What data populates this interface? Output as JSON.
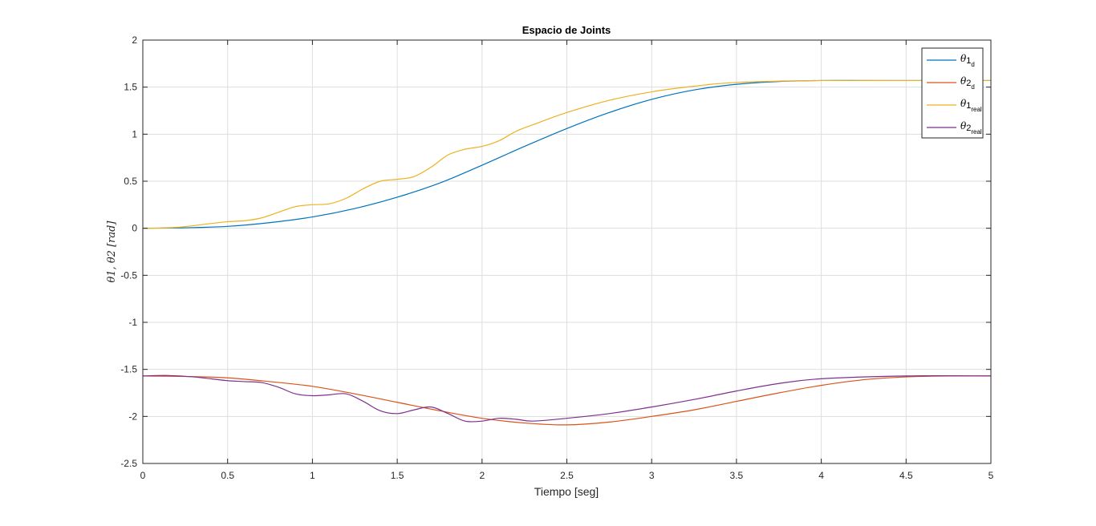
{
  "chart_data": {
    "type": "line",
    "title": "Espacio de Joints",
    "xlabel": "Tiempo [seg]",
    "ylabel": "θ1, θ2 [rad]",
    "xlim": [
      0,
      5
    ],
    "ylim": [
      -2.5,
      2
    ],
    "xticks": [
      0,
      0.5,
      1,
      1.5,
      2,
      2.5,
      3,
      3.5,
      4,
      4.5,
      5
    ],
    "xtick_labels": [
      "0",
      "0.5",
      "1",
      "1.5",
      "2",
      "2.5",
      "3",
      "3.5",
      "4",
      "4.5",
      "5"
    ],
    "yticks": [
      -2.5,
      -2,
      -1.5,
      -1,
      -0.5,
      0,
      0.5,
      1,
      1.5,
      2
    ],
    "ytick_labels": [
      "-2.5",
      "-2",
      "-1.5",
      "-1",
      "-0.5",
      "0",
      "0.5",
      "1",
      "1.5",
      "2"
    ],
    "grid": true,
    "legend_position": "top-right",
    "series": [
      {
        "name": "θ1d",
        "label_main": "θ",
        "label_index": "1",
        "label_sub": "d",
        "color": "#0072BD",
        "x": [
          0,
          0.25,
          0.5,
          0.75,
          1,
          1.25,
          1.5,
          1.75,
          2,
          2.25,
          2.5,
          2.75,
          3,
          3.25,
          3.5,
          3.75,
          4,
          4.25,
          4.5,
          4.75,
          5
        ],
        "y": [
          0,
          0.005,
          0.02,
          0.06,
          0.12,
          0.21,
          0.33,
          0.48,
          0.67,
          0.87,
          1.06,
          1.23,
          1.37,
          1.47,
          1.53,
          1.56,
          1.57,
          1.57,
          1.57,
          1.57,
          1.57
        ]
      },
      {
        "name": "θ2d",
        "label_main": "θ",
        "label_index": "2",
        "label_sub": "d",
        "color": "#D95319",
        "x": [
          0,
          0.25,
          0.5,
          0.75,
          1,
          1.25,
          1.5,
          1.75,
          2,
          2.25,
          2.5,
          2.75,
          3,
          3.25,
          3.5,
          3.75,
          4,
          4.25,
          4.5,
          4.75,
          5
        ],
        "y": [
          -1.57,
          -1.575,
          -1.59,
          -1.63,
          -1.68,
          -1.76,
          -1.85,
          -1.94,
          -2.02,
          -2.07,
          -2.09,
          -2.06,
          -2.0,
          -1.93,
          -1.84,
          -1.75,
          -1.67,
          -1.61,
          -1.58,
          -1.57,
          -1.57
        ]
      },
      {
        "name": "θ1real",
        "label_main": "θ",
        "label_index": "1",
        "label_sub": "real",
        "color": "#EDB120",
        "x": [
          0,
          0.2,
          0.4,
          0.5,
          0.6,
          0.7,
          0.8,
          0.9,
          1.0,
          1.1,
          1.2,
          1.3,
          1.4,
          1.5,
          1.6,
          1.7,
          1.8,
          1.9,
          2.0,
          2.1,
          2.2,
          2.3,
          2.5,
          2.75,
          3.0,
          3.25,
          3.5,
          4.0,
          4.5,
          5.0
        ],
        "y": [
          0,
          0.01,
          0.05,
          0.07,
          0.08,
          0.11,
          0.17,
          0.23,
          0.25,
          0.26,
          0.32,
          0.42,
          0.5,
          0.52,
          0.55,
          0.65,
          0.78,
          0.84,
          0.87,
          0.93,
          1.03,
          1.1,
          1.23,
          1.36,
          1.45,
          1.51,
          1.55,
          1.57,
          1.57,
          1.57
        ]
      },
      {
        "name": "θ2real",
        "label_main": "θ",
        "label_index": "2",
        "label_sub": "real",
        "color": "#7E2F8E",
        "x": [
          0,
          0.15,
          0.3,
          0.4,
          0.5,
          0.6,
          0.7,
          0.8,
          0.9,
          1.0,
          1.1,
          1.2,
          1.3,
          1.4,
          1.5,
          1.6,
          1.7,
          1.8,
          1.9,
          2.0,
          2.1,
          2.2,
          2.3,
          2.5,
          2.75,
          3.0,
          3.25,
          3.5,
          3.75,
          4.0,
          4.5,
          5.0
        ],
        "y": [
          -1.57,
          -1.565,
          -1.58,
          -1.6,
          -1.62,
          -1.63,
          -1.64,
          -1.69,
          -1.76,
          -1.78,
          -1.77,
          -1.76,
          -1.84,
          -1.94,
          -1.97,
          -1.93,
          -1.9,
          -1.97,
          -2.05,
          -2.05,
          -2.02,
          -2.03,
          -2.05,
          -2.02,
          -1.97,
          -1.9,
          -1.82,
          -1.73,
          -1.65,
          -1.6,
          -1.57,
          -1.57
        ]
      }
    ]
  }
}
